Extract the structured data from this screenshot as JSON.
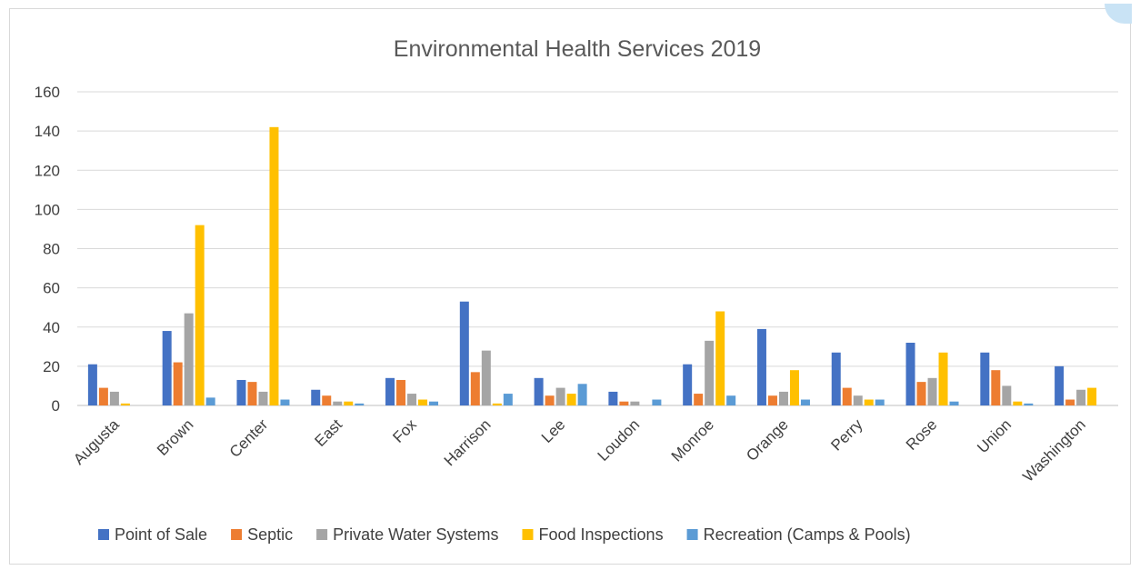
{
  "chart_data": {
    "type": "bar",
    "title": "Environmental Health Services 2019",
    "xlabel": "",
    "ylabel": "",
    "ylim": [
      0,
      160
    ],
    "yticks": [
      0,
      20,
      40,
      60,
      80,
      100,
      120,
      140,
      160
    ],
    "grid": true,
    "legend_position": "bottom",
    "categories": [
      "Augusta",
      "Brown",
      "Center",
      "East",
      "Fox",
      "Harrison",
      "Lee",
      "Loudon",
      "Monroe",
      "Orange",
      "Perry",
      "Rose",
      "Union",
      "Washington"
    ],
    "series": [
      {
        "name": "Point of Sale",
        "color": "#4472c4",
        "values": [
          21,
          38,
          13,
          8,
          14,
          53,
          14,
          7,
          21,
          39,
          27,
          32,
          27,
          20
        ]
      },
      {
        "name": "Septic",
        "color": "#ed7d31",
        "values": [
          9,
          22,
          12,
          5,
          13,
          17,
          5,
          2,
          6,
          5,
          9,
          12,
          18,
          3
        ]
      },
      {
        "name": "Private Water Systems",
        "color": "#a5a5a5",
        "values": [
          7,
          47,
          7,
          2,
          6,
          28,
          9,
          2,
          33,
          7,
          5,
          14,
          10,
          8
        ]
      },
      {
        "name": "Food Inspections",
        "color": "#ffc000",
        "values": [
          1,
          92,
          142,
          2,
          3,
          1,
          6,
          0,
          48,
          18,
          3,
          27,
          2,
          9
        ]
      },
      {
        "name": "Recreation (Camps & Pools)",
        "color": "#5b9bd5",
        "values": [
          0,
          4,
          3,
          1,
          2,
          6,
          11,
          3,
          5,
          3,
          3,
          2,
          1,
          0
        ]
      }
    ]
  }
}
